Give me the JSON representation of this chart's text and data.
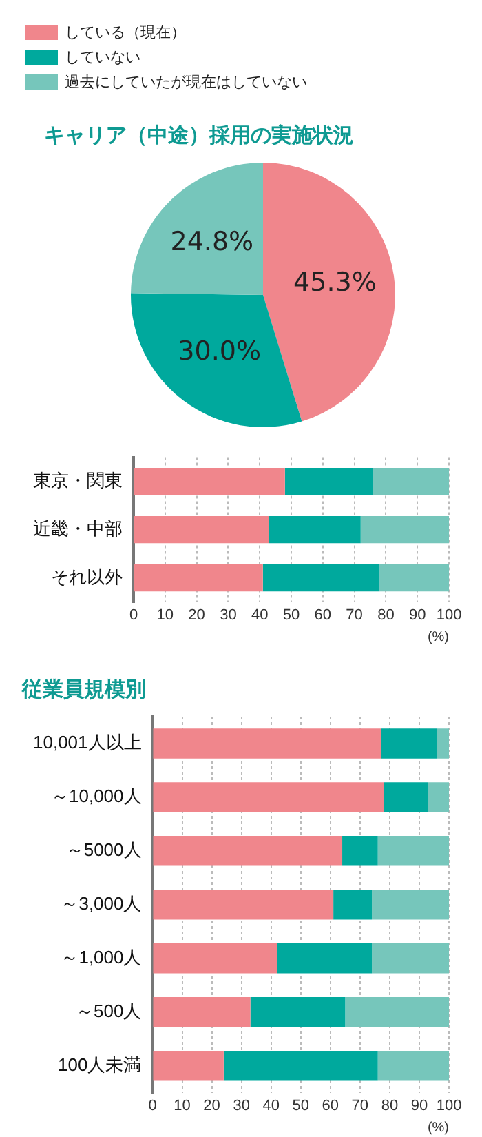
{
  "chart_data": [
    {
      "type": "pie",
      "title": "キャリア（中途）採用の実施状況",
      "categories": [
        "している（現在）",
        "していない",
        "過去にしていたが現在はしていない"
      ],
      "values": [
        45.3,
        30.0,
        24.8
      ],
      "colors": [
        "#f0868c",
        "#00a99d",
        "#76c6bb"
      ],
      "value_labels": [
        "45.3%",
        "30.0%",
        "24.8%"
      ],
      "legend": "top left"
    },
    {
      "type": "bar",
      "orientation": "horizontal",
      "stacked": true,
      "categories": [
        "東京・関東",
        "近畿・中部",
        "それ以外"
      ],
      "series": [
        {
          "color": "#f0868c",
          "values": [
            48,
            43,
            41
          ]
        },
        {
          "color": "#00a99d",
          "values": [
            28,
            29,
            37
          ]
        },
        {
          "color": "#76c6bb",
          "values": [
            24,
            28,
            22
          ]
        }
      ],
      "xlim": [
        0,
        100
      ],
      "xticks": [
        0,
        10,
        20,
        30,
        40,
        50,
        60,
        70,
        80,
        90,
        100
      ],
      "xlabel": "(%)",
      "grid": "x"
    },
    {
      "type": "bar",
      "orientation": "horizontal",
      "stacked": true,
      "title": "従業員規模別",
      "categories": [
        "10,001人以上",
        "～10,000人",
        "～5000人",
        "～3,000人",
        "～1,000人",
        "～500人",
        "100人未満"
      ],
      "series": [
        {
          "color": "#f0868c",
          "values": [
            77,
            78,
            64,
            61,
            42,
            33,
            24
          ]
        },
        {
          "color": "#00a99d",
          "values": [
            19,
            15,
            12,
            13,
            32,
            32,
            52
          ]
        },
        {
          "color": "#76c6bb",
          "values": [
            4,
            7,
            24,
            26,
            26,
            35,
            24
          ]
        }
      ],
      "xlim": [
        0,
        100
      ],
      "xticks": [
        0,
        10,
        20,
        30,
        40,
        50,
        60,
        70,
        80,
        90,
        100
      ],
      "xlabel": "(%)",
      "grid": "x"
    }
  ]
}
